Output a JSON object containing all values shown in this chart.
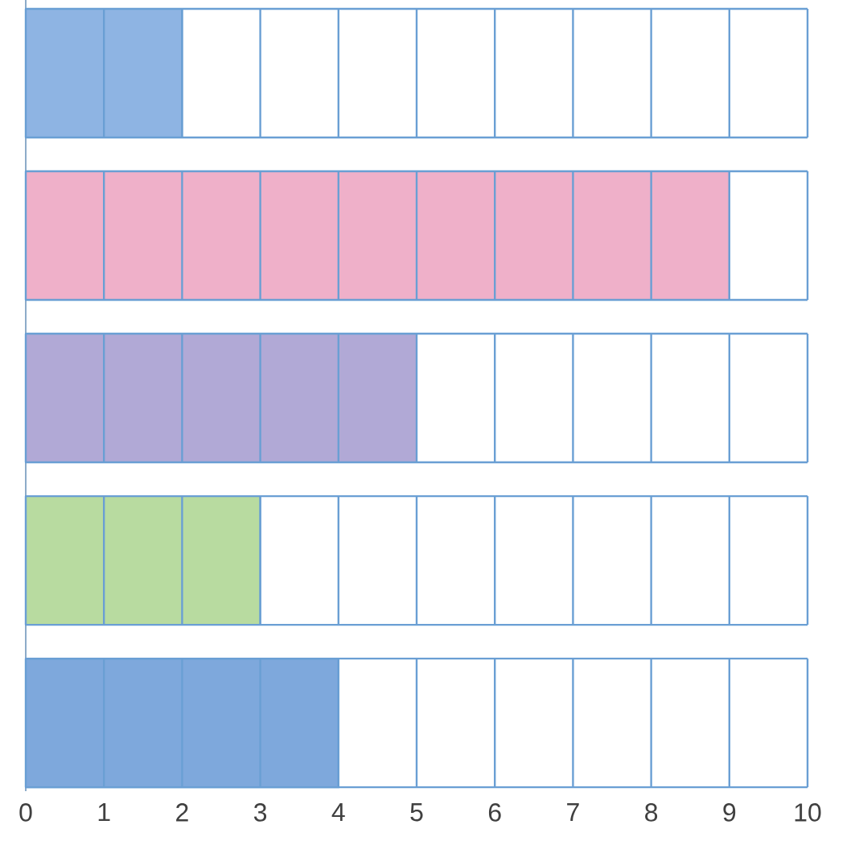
{
  "chart_data": {
    "type": "bar",
    "orientation": "horizontal",
    "categories": [
      null,
      null,
      null,
      null,
      null
    ],
    "values": [
      2,
      9,
      5,
      3,
      4
    ],
    "colors": [
      "#8eb4e3",
      "#efb0c9",
      "#b1a9d6",
      "#b8dba0",
      "#7ea8dc"
    ],
    "xlim": [
      0,
      10
    ],
    "xticks": [
      0,
      1,
      2,
      3,
      4,
      5,
      6,
      7,
      8,
      9,
      10
    ],
    "grid": "x"
  }
}
